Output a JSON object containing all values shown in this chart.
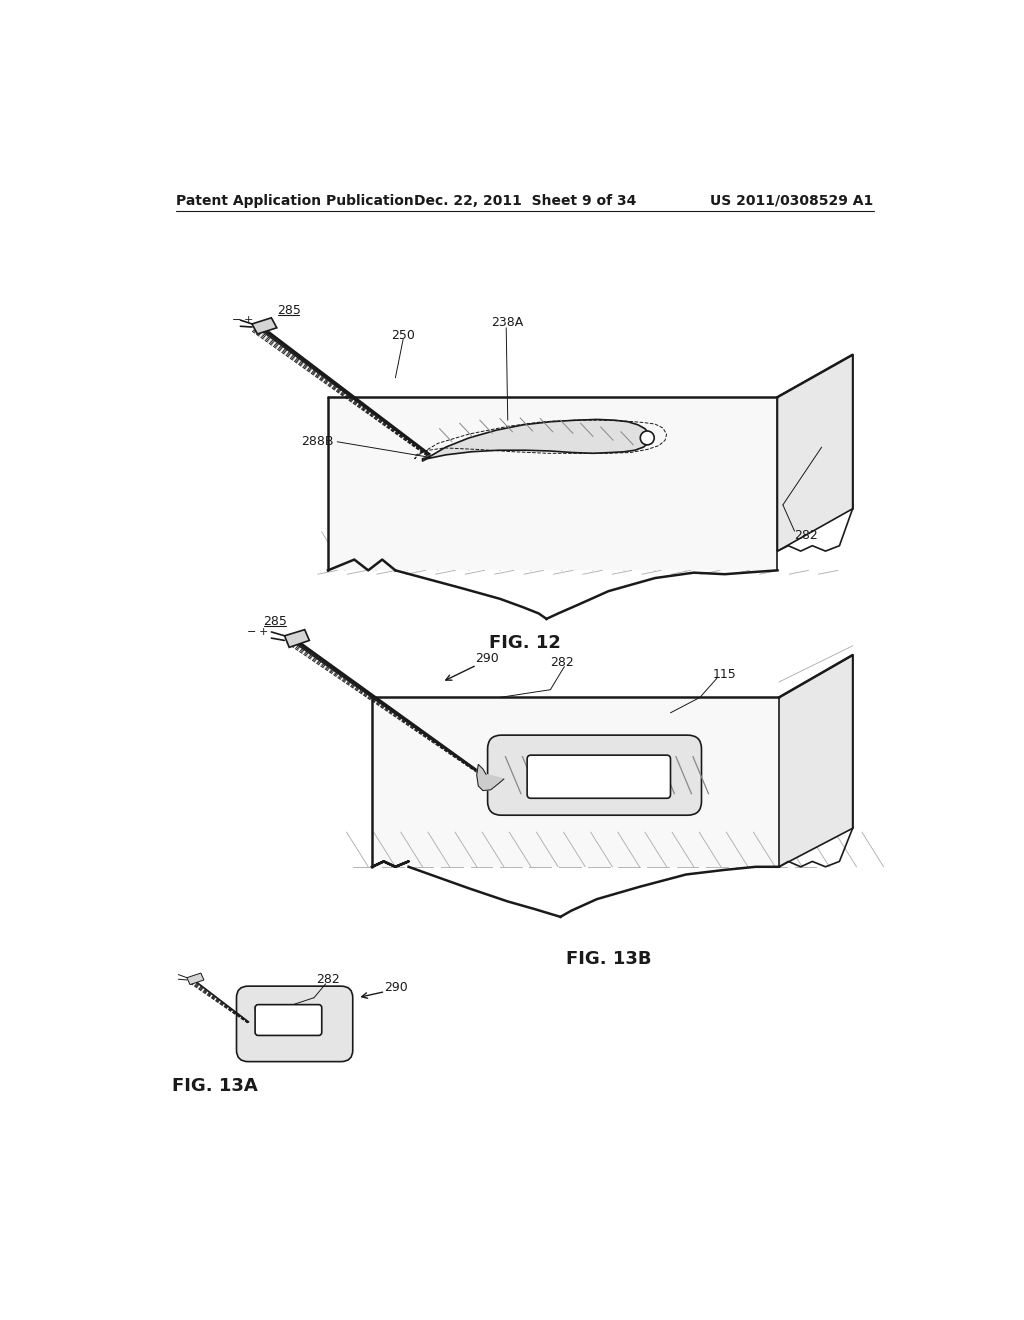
{
  "background_color": "#ffffff",
  "header_left": "Patent Application Publication",
  "header_middle": "Dec. 22, 2011  Sheet 9 of 34",
  "header_right": "US 2011/0308529 A1",
  "fig12_label": "FIG. 12",
  "fig13a_label": "FIG. 13A",
  "fig13b_label": "FIG. 13B",
  "line_color": "#1a1a1a",
  "text_color": "#1a1a1a",
  "header_fontsize": 10,
  "label_fontsize": 9,
  "figlabel_fontsize": 13
}
